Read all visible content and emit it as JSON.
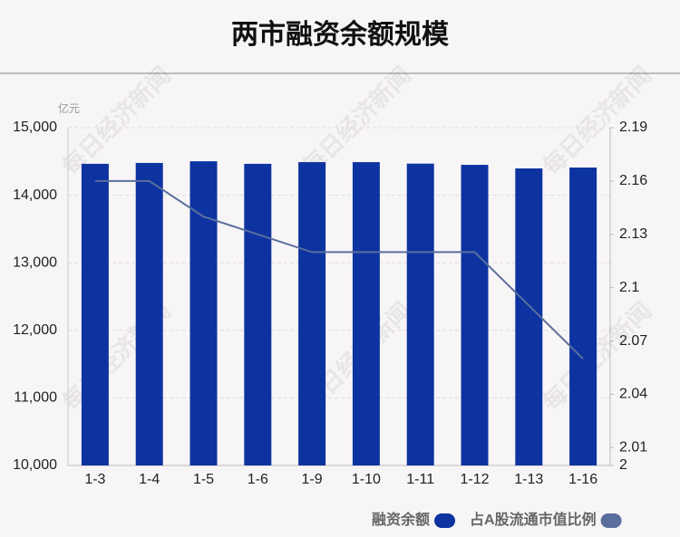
{
  "chart_data": {
    "type": "bar",
    "title": "两市融资余额规模",
    "y_unit": "亿元",
    "watermark": "每日经济新闻",
    "categories": [
      "1-3",
      "1-4",
      "1-5",
      "1-6",
      "1-9",
      "1-10",
      "1-11",
      "1-12",
      "1-13",
      "1-16"
    ],
    "series": [
      {
        "name": "融资余额",
        "type": "bar",
        "color": "#0d33a1",
        "values": [
          14465,
          14478,
          14503,
          14465,
          14490,
          14490,
          14468,
          14450,
          14397,
          14410
        ]
      },
      {
        "name": "占A股流通市值比例",
        "type": "line",
        "color": "#5a6f9c",
        "axis": "y2",
        "values": [
          2.16,
          2.16,
          2.14,
          2.13,
          2.12,
          2.12,
          2.12,
          2.12,
          2.09,
          2.06
        ]
      }
    ],
    "ylim": [
      10000,
      15000
    ],
    "yticks": [
      {
        "value": 10000,
        "label": "10,000"
      },
      {
        "value": 11000,
        "label": "11,000"
      },
      {
        "value": 12000,
        "label": "12,000"
      },
      {
        "value": 13000,
        "label": "13,000"
      },
      {
        "value": 14000,
        "label": "14,000"
      },
      {
        "value": 15000,
        "label": "15,000"
      }
    ],
    "y2lim": [
      2,
      2.19
    ],
    "y2ticks": [
      2,
      2.01,
      2.04,
      2.07,
      2.1,
      2.13,
      2.16,
      2.19
    ],
    "grid": true
  }
}
